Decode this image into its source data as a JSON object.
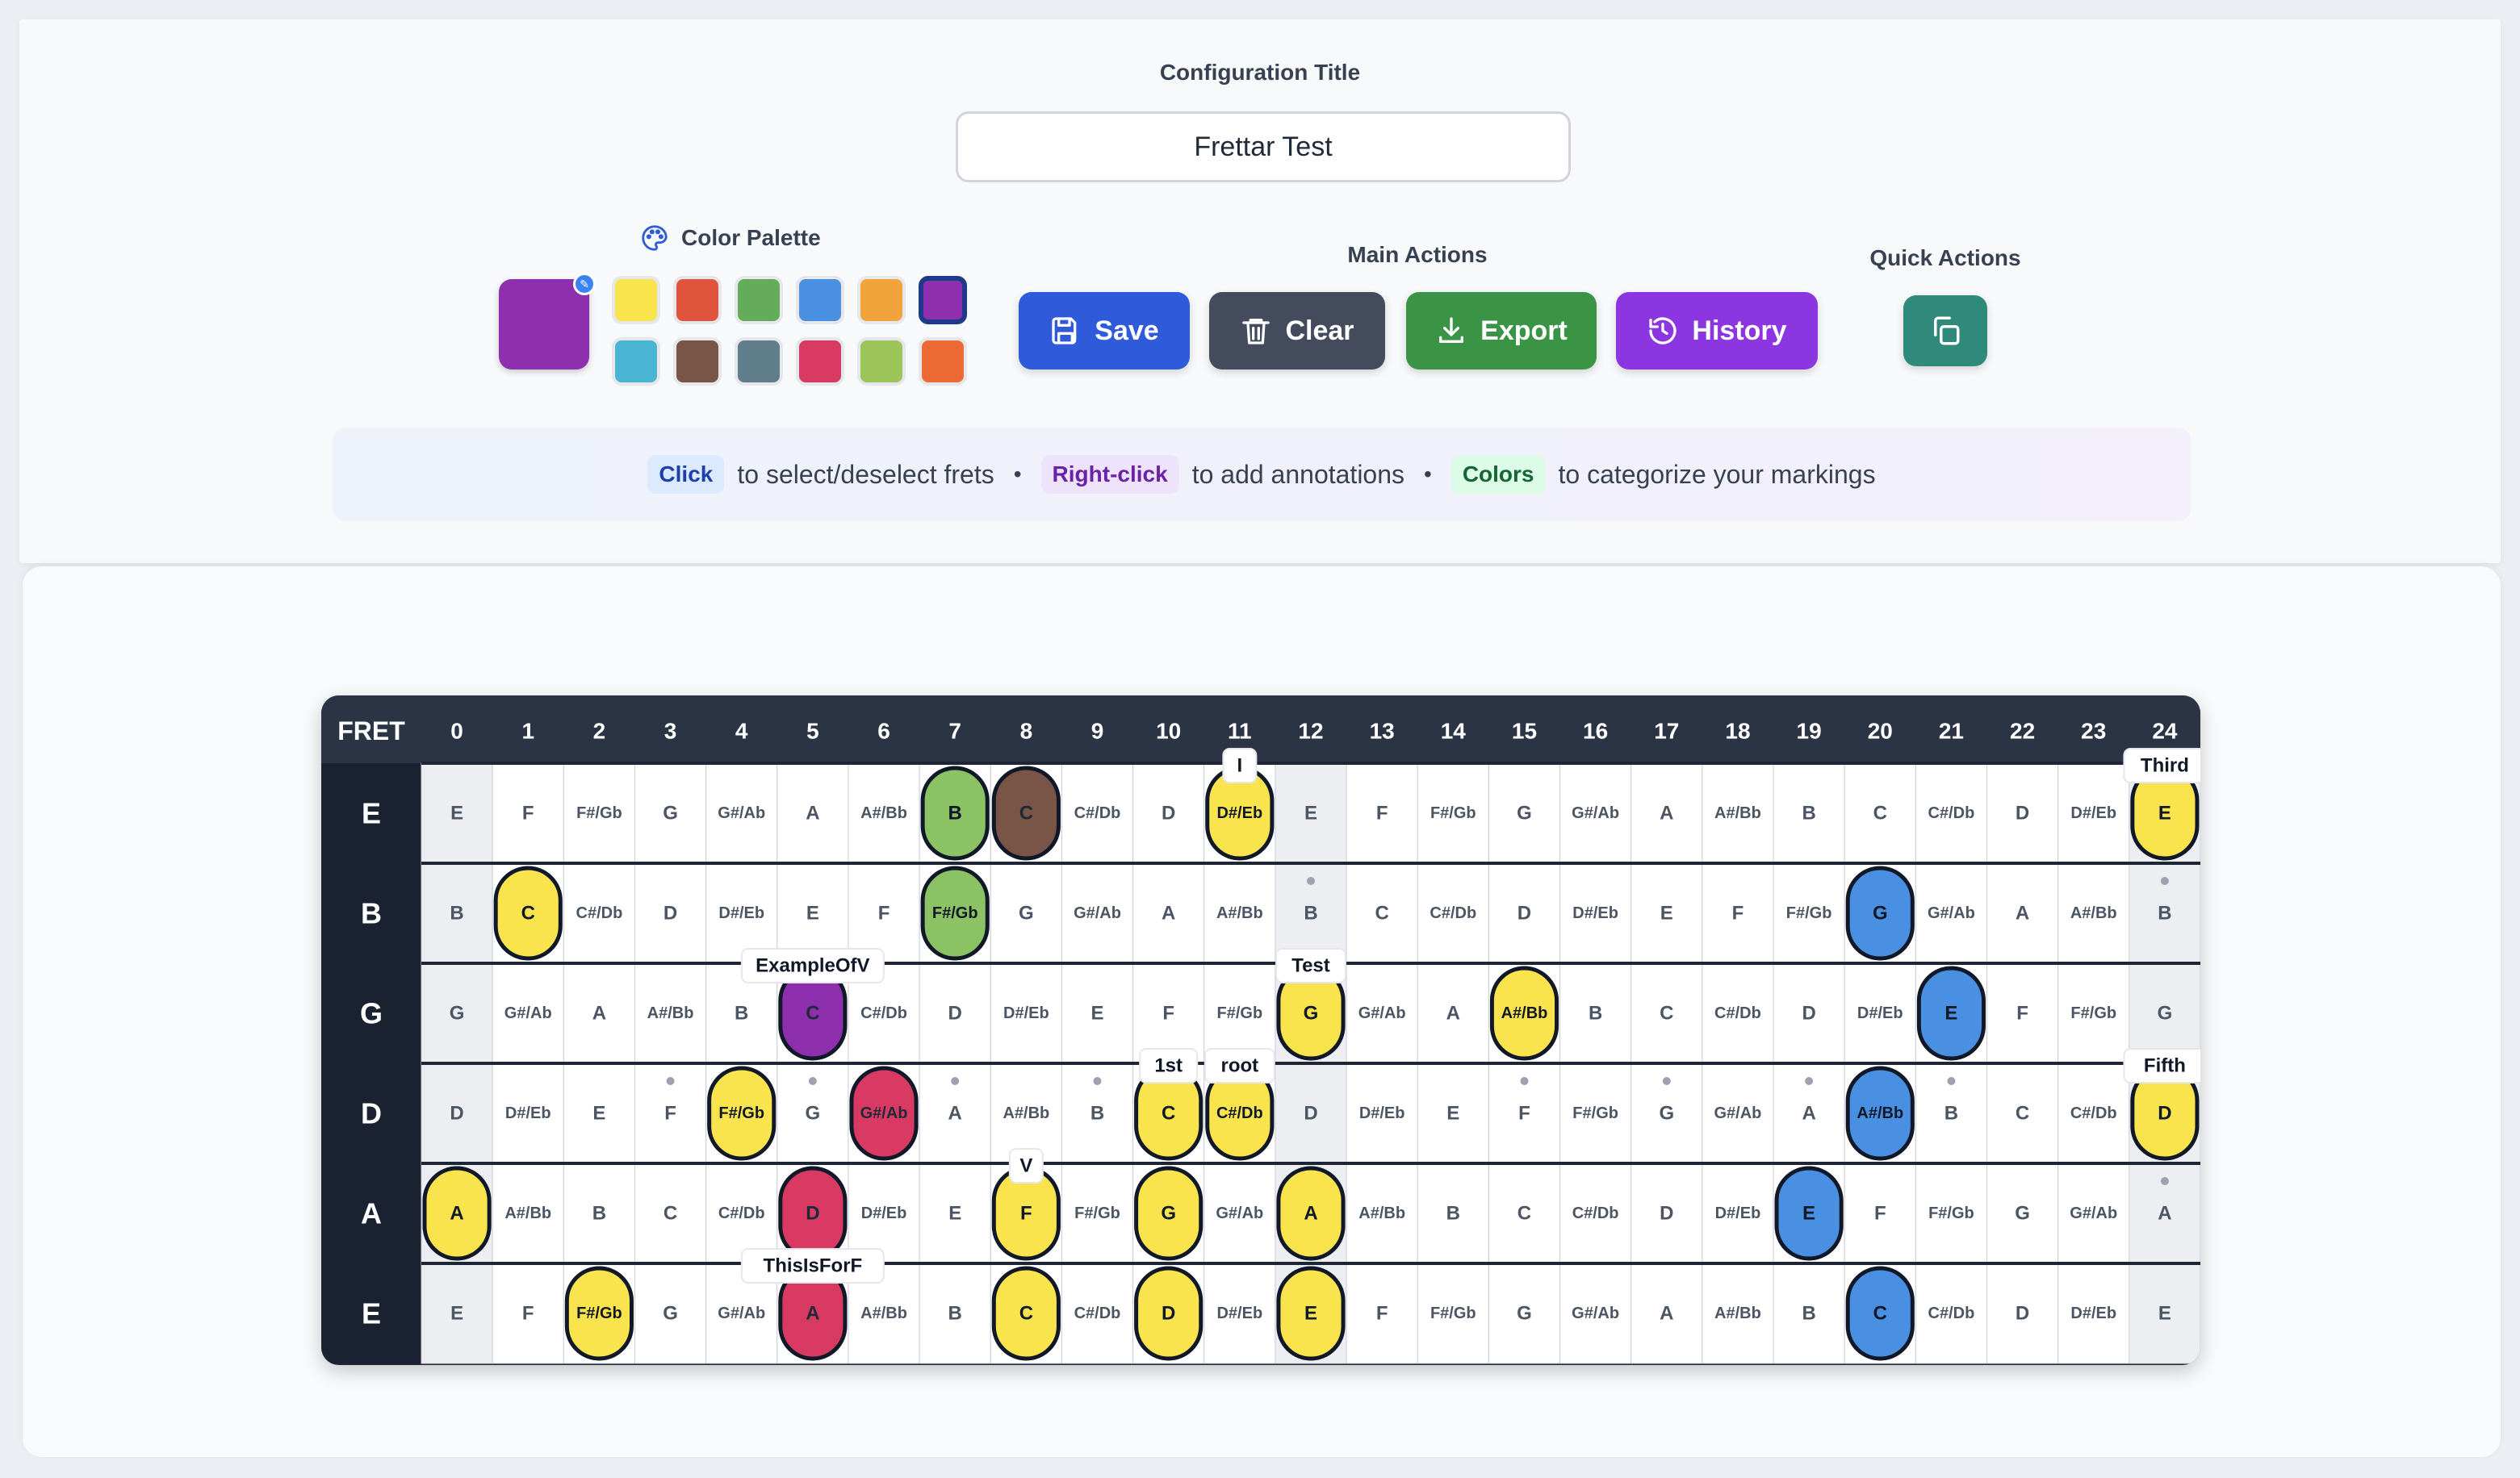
{
  "config": {
    "label": "Configuration Title",
    "title_value": "Frettar Test"
  },
  "palette": {
    "label": "Color Palette",
    "current": "#8e2fad",
    "colors": [
      "#f9e44d",
      "#e0533d",
      "#64ab5a",
      "#4a90e2",
      "#f0a23b",
      "#8e2fad",
      "#4ab5d3",
      "#795548",
      "#607d8b",
      "#d93a63",
      "#9bc459",
      "#ec6b34"
    ],
    "selected_index": 5
  },
  "main_actions": {
    "label": "Main Actions",
    "buttons": [
      {
        "label": "Save",
        "icon": "save-icon",
        "color": "#2f5ad9"
      },
      {
        "label": "Clear",
        "icon": "trash-icon",
        "color": "#434b5c"
      },
      {
        "label": "Export",
        "icon": "download-icon",
        "color": "#3b9446"
      },
      {
        "label": "History",
        "icon": "history-icon",
        "color": "#8b36e0"
      }
    ]
  },
  "quick_actions": {
    "label": "Quick Actions",
    "icon": "copy-icon",
    "color": "#2f8a7c"
  },
  "hints": {
    "click_pill": "Click",
    "click_text": "to select/deselect frets",
    "right_pill": "Right-click",
    "right_text": "to add annotations",
    "colors_pill": "Colors",
    "colors_text": "to categorize your markings",
    "separator": "•"
  },
  "fretboard": {
    "header_label": "FRET",
    "frets": [
      0,
      1,
      2,
      3,
      4,
      5,
      6,
      7,
      8,
      9,
      10,
      11,
      12,
      13,
      14,
      15,
      16,
      17,
      18,
      19,
      20,
      21,
      22,
      23,
      24
    ],
    "inlay_frets": [
      3,
      5,
      7,
      9,
      12,
      15,
      17,
      19,
      21,
      24
    ],
    "strings": [
      {
        "name": "E",
        "notes": [
          "E",
          "F",
          "F#/Gb",
          "G",
          "G#/Ab",
          "A",
          "A#/Bb",
          "B",
          "C",
          "C#/Db",
          "D",
          "D#/Eb",
          "E",
          "F",
          "F#/Gb",
          "G",
          "G#/Ab",
          "A",
          "A#/Bb",
          "B",
          "C",
          "C#/Db",
          "D",
          "D#/Eb",
          "E"
        ]
      },
      {
        "name": "B",
        "notes": [
          "B",
          "C",
          "C#/Db",
          "D",
          "D#/Eb",
          "E",
          "F",
          "F#/Gb",
          "G",
          "G#/Ab",
          "A",
          "A#/Bb",
          "B",
          "C",
          "C#/Db",
          "D",
          "D#/Eb",
          "E",
          "F",
          "F#/Gb",
          "G",
          "G#/Ab",
          "A",
          "A#/Bb",
          "B"
        ]
      },
      {
        "name": "G",
        "notes": [
          "G",
          "G#/Ab",
          "A",
          "A#/Bb",
          "B",
          "C",
          "C#/Db",
          "D",
          "D#/Eb",
          "E",
          "F",
          "F#/Gb",
          "G",
          "G#/Ab",
          "A",
          "A#/Bb",
          "B",
          "C",
          "C#/Db",
          "D",
          "D#/Eb",
          "E",
          "F",
          "F#/Gb",
          "G"
        ]
      },
      {
        "name": "D",
        "notes": [
          "D",
          "D#/Eb",
          "E",
          "F",
          "F#/Gb",
          "G",
          "G#/Ab",
          "A",
          "A#/Bb",
          "B",
          "C",
          "C#/Db",
          "D",
          "D#/Eb",
          "E",
          "F",
          "F#/Gb",
          "G",
          "G#/Ab",
          "A",
          "A#/Bb",
          "B",
          "C",
          "C#/Db",
          "D"
        ]
      },
      {
        "name": "A",
        "notes": [
          "A",
          "A#/Bb",
          "B",
          "C",
          "C#/Db",
          "D",
          "D#/Eb",
          "E",
          "F",
          "F#/Gb",
          "G",
          "G#/Ab",
          "A",
          "A#/Bb",
          "B",
          "C",
          "C#/Db",
          "D",
          "D#/Eb",
          "E",
          "F",
          "F#/Gb",
          "G",
          "G#/Ab",
          "A"
        ]
      },
      {
        "name": "E",
        "notes": [
          "E",
          "F",
          "F#/Gb",
          "G",
          "G#/Ab",
          "A",
          "A#/Bb",
          "B",
          "C",
          "C#/Db",
          "D",
          "D#/Eb",
          "E",
          "F",
          "F#/Gb",
          "G",
          "G#/Ab",
          "A",
          "A#/Bb",
          "B",
          "C",
          "C#/Db",
          "D",
          "D#/Eb",
          "E"
        ]
      }
    ],
    "marks": [
      {
        "string": 0,
        "fret": 7,
        "color": "#8bc263"
      },
      {
        "string": 0,
        "fret": 8,
        "color": "#795548"
      },
      {
        "string": 0,
        "fret": 11,
        "color": "#f9e44d",
        "annotation": "I"
      },
      {
        "string": 0,
        "fret": 24,
        "color": "#f9e44d",
        "annotation": "Third"
      },
      {
        "string": 1,
        "fret": 1,
        "color": "#f9e44d"
      },
      {
        "string": 1,
        "fret": 7,
        "color": "#8bc263"
      },
      {
        "string": 1,
        "fret": 20,
        "color": "#4a90e2"
      },
      {
        "string": 2,
        "fret": 5,
        "color": "#8e2fad",
        "annotation": "ExampleOfV"
      },
      {
        "string": 2,
        "fret": 12,
        "color": "#f9e44d",
        "annotation": "Test"
      },
      {
        "string": 2,
        "fret": 15,
        "color": "#f9e44d"
      },
      {
        "string": 2,
        "fret": 21,
        "color": "#4a90e2"
      },
      {
        "string": 3,
        "fret": 4,
        "color": "#f9e44d"
      },
      {
        "string": 3,
        "fret": 6,
        "color": "#d93a63"
      },
      {
        "string": 3,
        "fret": 10,
        "color": "#f9e44d",
        "annotation": "1st"
      },
      {
        "string": 3,
        "fret": 11,
        "color": "#f9e44d",
        "annotation": "root"
      },
      {
        "string": 3,
        "fret": 20,
        "color": "#4a90e2"
      },
      {
        "string": 3,
        "fret": 24,
        "color": "#f9e44d",
        "annotation": "Fifth"
      },
      {
        "string": 4,
        "fret": 0,
        "color": "#f9e44d"
      },
      {
        "string": 4,
        "fret": 5,
        "color": "#d93a63"
      },
      {
        "string": 4,
        "fret": 8,
        "color": "#f9e44d",
        "annotation": "V"
      },
      {
        "string": 4,
        "fret": 10,
        "color": "#f9e44d"
      },
      {
        "string": 4,
        "fret": 12,
        "color": "#f9e44d"
      },
      {
        "string": 4,
        "fret": 19,
        "color": "#4a90e2"
      },
      {
        "string": 5,
        "fret": 2,
        "color": "#f9e44d"
      },
      {
        "string": 5,
        "fret": 5,
        "color": "#d93a63",
        "annotation": "ThisIsForF"
      },
      {
        "string": 5,
        "fret": 8,
        "color": "#f9e44d"
      },
      {
        "string": 5,
        "fret": 10,
        "color": "#f9e44d"
      },
      {
        "string": 5,
        "fret": 12,
        "color": "#f9e44d"
      },
      {
        "string": 5,
        "fret": 20,
        "color": "#4a90e2"
      }
    ]
  }
}
